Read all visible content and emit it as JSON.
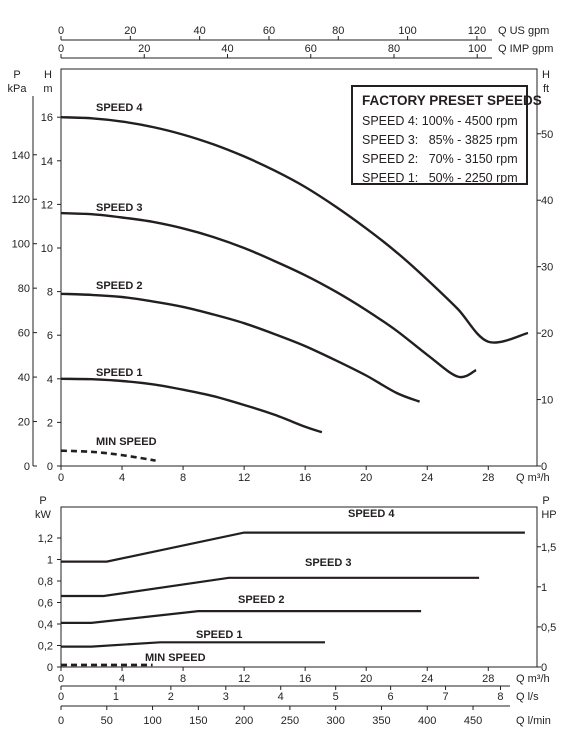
{
  "colors": {
    "ink": "#231f20",
    "background": "#ffffff"
  },
  "legend": {
    "title": "FACTORY PRESET SPEEDS",
    "rows": [
      "SPEED 4: 100% - 4500 rpm",
      "SPEED 3:   85% - 3825 rpm",
      "SPEED 2:   70% - 3150 rpm",
      "SPEED 1:   50% - 2250 rpm"
    ]
  },
  "chart_data": [
    {
      "type": "line",
      "panel": "head",
      "x_axis": {
        "unit": "Q m³/h",
        "range": [
          0,
          31
        ],
        "ticks": [
          0,
          4,
          8,
          12,
          16,
          20,
          24,
          28
        ]
      },
      "top_axes": [
        {
          "unit": "Q US gpm",
          "ticks": [
            0,
            20,
            40,
            60,
            80,
            100,
            120
          ]
        },
        {
          "unit": "Q IMP gpm",
          "ticks": [
            0,
            20,
            40,
            60,
            80,
            100
          ]
        }
      ],
      "y_axis": {
        "unit_top": "H",
        "unit_bottom": "m",
        "range": [
          0,
          17
        ],
        "ticks": [
          0,
          2,
          4,
          6,
          8,
          10,
          12,
          14,
          16
        ]
      },
      "y_axis_outer": {
        "unit_top": "P",
        "unit_bottom": "kPa",
        "ticks": [
          0,
          20,
          40,
          60,
          80,
          100,
          120,
          140
        ]
      },
      "y_axis_right": {
        "unit_top": "H",
        "unit_bottom": "ft",
        "ticks": [
          0,
          10,
          20,
          30,
          40,
          50
        ]
      },
      "grid": false,
      "series": [
        {
          "name": "SPEED 4",
          "dashed": false,
          "x": [
            0,
            2,
            4,
            6,
            8,
            10,
            12,
            14,
            16,
            18,
            20,
            22,
            24,
            26,
            28,
            30.6
          ],
          "y": [
            16,
            15.95,
            15.8,
            15.55,
            15.2,
            14.75,
            14.2,
            13.55,
            12.8,
            11.9,
            10.9,
            9.8,
            8.55,
            7.2,
            5.7,
            6.1
          ]
        },
        {
          "name": "SPEED 3",
          "dashed": false,
          "x": [
            0,
            2,
            4,
            6,
            8,
            10,
            12,
            14,
            16,
            18,
            20,
            22,
            24,
            26,
            27.2
          ],
          "y": [
            11.6,
            11.55,
            11.4,
            11.2,
            10.9,
            10.5,
            10,
            9.4,
            8.75,
            8,
            7.15,
            6.2,
            5.1,
            4.1,
            4.4
          ]
        },
        {
          "name": "SPEED 2",
          "dashed": false,
          "x": [
            0,
            2,
            4,
            6,
            8,
            10,
            12,
            14,
            16,
            18,
            20,
            22,
            23.5
          ],
          "y": [
            7.9,
            7.85,
            7.75,
            7.55,
            7.3,
            6.95,
            6.55,
            6.05,
            5.5,
            4.85,
            4.15,
            3.35,
            2.95
          ]
        },
        {
          "name": "SPEED 1",
          "dashed": false,
          "x": [
            0,
            2,
            4,
            6,
            8,
            10,
            12,
            14,
            16,
            17.1
          ],
          "y": [
            4,
            3.98,
            3.9,
            3.75,
            3.5,
            3.2,
            2.8,
            2.35,
            1.8,
            1.55
          ]
        },
        {
          "name": "MIN SPEED",
          "dashed": true,
          "x": [
            0,
            2,
            4,
            6.2
          ],
          "y": [
            0.7,
            0.65,
            0.5,
            0.25
          ]
        }
      ]
    },
    {
      "type": "line",
      "panel": "power",
      "x_axis": {
        "unit": "Q m³/h",
        "range": [
          0,
          31
        ],
        "ticks": [
          0,
          4,
          8,
          12,
          16,
          20,
          24,
          28
        ]
      },
      "bottom_axes": [
        {
          "unit": "Q l/s",
          "ticks": [
            0,
            1,
            2,
            3,
            4,
            5,
            6,
            7,
            8
          ]
        },
        {
          "unit": "Q l/min",
          "ticks": [
            0,
            50,
            100,
            150,
            200,
            250,
            300,
            350,
            400,
            450
          ]
        }
      ],
      "y_axis": {
        "unit_top": "P",
        "unit_bottom": "kW",
        "range": [
          0,
          1.35
        ],
        "ticks": [
          "0",
          "0,2",
          "0,4",
          "0,6",
          "0,8",
          "1",
          "1,2"
        ]
      },
      "y_axis_right": {
        "unit_top": "P",
        "unit_bottom": "HP",
        "ticks": [
          "0",
          "0,5",
          "1",
          "1,5"
        ]
      },
      "grid": false,
      "series": [
        {
          "name": "SPEED 4",
          "dashed": false,
          "x": [
            0,
            3,
            12,
            30.4
          ],
          "y": [
            0.98,
            0.98,
            1.25,
            1.25
          ]
        },
        {
          "name": "SPEED 3",
          "dashed": false,
          "x": [
            0,
            2.8,
            11,
            27.4
          ],
          "y": [
            0.66,
            0.66,
            0.83,
            0.83
          ]
        },
        {
          "name": "SPEED 2",
          "dashed": false,
          "x": [
            0,
            2,
            9,
            23.6
          ],
          "y": [
            0.41,
            0.41,
            0.52,
            0.52
          ]
        },
        {
          "name": "SPEED 1",
          "dashed": false,
          "x": [
            0,
            2,
            6.5,
            17.3
          ],
          "y": [
            0.19,
            0.19,
            0.23,
            0.23
          ]
        },
        {
          "name": "MIN SPEED",
          "dashed": true,
          "x": [
            0,
            6
          ],
          "y": [
            0.02,
            0.02
          ]
        }
      ]
    }
  ]
}
